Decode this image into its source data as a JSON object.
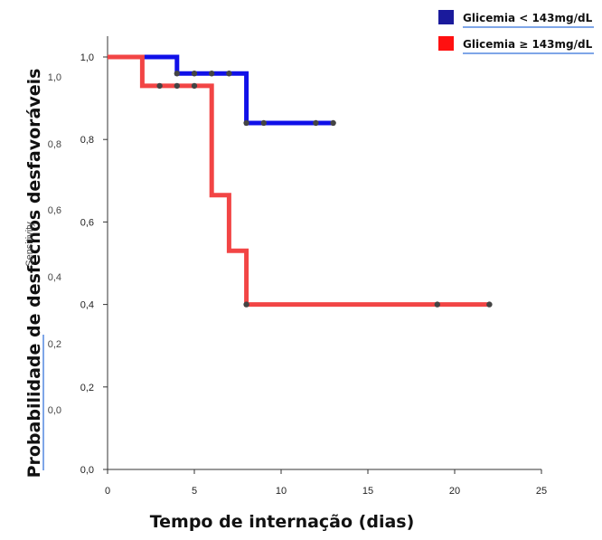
{
  "chart_data": {
    "type": "line",
    "step": true,
    "xlabel": "Tempo de internação (dias)",
    "ylabel": "Probabilidade  de desfechos desfavoráveis",
    "ylabel_ghost": "Sensitivity",
    "xlim": [
      0,
      25
    ],
    "ylim": [
      0,
      1
    ],
    "x_ticks": [
      0,
      5,
      10,
      15,
      20,
      25
    ],
    "x_tick_labels": [
      "0",
      "5",
      "10",
      "15",
      "20",
      "25"
    ],
    "y_ticks": [
      0,
      0.2,
      0.4,
      0.6,
      0.8,
      1.0
    ],
    "y_tick_labels": [
      "0,0",
      "0,2",
      "0,4",
      "0,6",
      "0,8",
      "1,0"
    ],
    "ghost_y_tick_labels": [
      "1,0",
      "0,8",
      "0,6",
      "0,4",
      "0,2",
      "0,0"
    ],
    "grid": false,
    "legend_position": "top-right",
    "series": [
      {
        "name": "Glicemia  < 143mg/dL",
        "color": "#1010e8",
        "steps": [
          [
            0,
            1.0
          ],
          [
            4,
            1.0
          ],
          [
            4,
            0.96
          ],
          [
            8,
            0.96
          ],
          [
            8,
            0.84
          ],
          [
            13,
            0.84
          ]
        ],
        "censored": [
          [
            4,
            0.96
          ],
          [
            5,
            0.96
          ],
          [
            6,
            0.96
          ],
          [
            7,
            0.96
          ],
          [
            8,
            0.84
          ],
          [
            9,
            0.84
          ],
          [
            12,
            0.84
          ],
          [
            13,
            0.84
          ]
        ]
      },
      {
        "name": "Glicemia  ≥ 143mg/dL",
        "color": "#f24545",
        "steps": [
          [
            0,
            1.0
          ],
          [
            2,
            1.0
          ],
          [
            2,
            0.93
          ],
          [
            6,
            0.93
          ],
          [
            6,
            0.665
          ],
          [
            7,
            0.665
          ],
          [
            7,
            0.53
          ],
          [
            8,
            0.53
          ],
          [
            8,
            0.4
          ],
          [
            22,
            0.4
          ]
        ],
        "censored": [
          [
            3,
            0.93
          ],
          [
            4,
            0.93
          ],
          [
            5,
            0.93
          ],
          [
            8,
            0.4
          ],
          [
            19,
            0.4
          ],
          [
            22,
            0.4
          ]
        ]
      }
    ]
  },
  "legend_colors": {
    "series_0_box": "#1a1a9c",
    "series_1_box": "#ff1010",
    "underline": "#7fa6e8"
  }
}
